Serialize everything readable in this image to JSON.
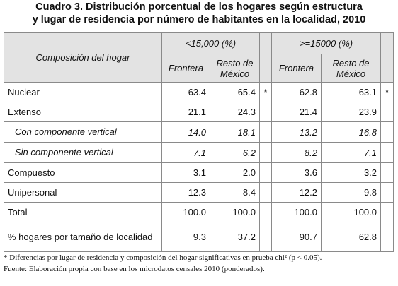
{
  "title": [
    "Cuadro 3. Distribución porcentual de los hogares según estructura",
    "y lugar de residencia por número de habitantes en la localidad, 2010"
  ],
  "table": {
    "header": {
      "row_label": "Composición del hogar",
      "groups": [
        "<15,000 (%)",
        ">=15000 (%)"
      ],
      "columns": [
        "Frontera",
        "Resto de México",
        "Frontera",
        "Resto de México"
      ]
    },
    "rows": [
      {
        "label": "Nuclear",
        "values": [
          "63.4",
          "65.4",
          "62.8",
          "63.1"
        ],
        "marks": [
          "*",
          "*"
        ]
      },
      {
        "label": "Extenso",
        "values": [
          "21.1",
          "24.3",
          "21.4",
          "23.9"
        ]
      },
      {
        "label": "Con componente vertical",
        "values": [
          "14.0",
          "18.1",
          "13.2",
          "16.8"
        ],
        "indent": true
      },
      {
        "label": "Sin componente vertical",
        "values": [
          "7.1",
          "6.2",
          "8.2",
          "7.1"
        ],
        "indent": true
      },
      {
        "label": "Compuesto",
        "values": [
          "3.1",
          "2.0",
          "3.6",
          "3.2"
        ]
      },
      {
        "label": "Unipersonal",
        "values": [
          "12.3",
          "8.4",
          "12.2",
          "9.8"
        ]
      },
      {
        "label": "Total",
        "values": [
          "100.0",
          "100.0",
          "100.0",
          "100.0"
        ]
      },
      {
        "label": "% hogares por tamaño de localidad",
        "values": [
          "9.3",
          "37.2",
          "90.7",
          "62.8"
        ]
      }
    ]
  },
  "notes": [
    "* Diferencias por lugar de residencia y composición del hogar significativas en prueba chi² (p < 0.05).",
    "Fuente: Elaboración propia con base en los microdatos censales 2010 (ponderados)."
  ]
}
